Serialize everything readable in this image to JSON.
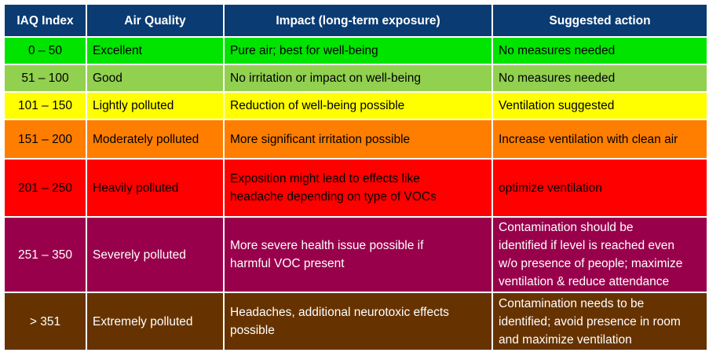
{
  "headers": [
    "IAQ Index",
    "Air Quality",
    "Impact (long-term exposure)",
    "Suggested action"
  ],
  "rows": [
    {
      "index": "0 – 50",
      "quality": "Excellent",
      "impact": "Pure air; best for well-being",
      "action": "No measures needed",
      "bg": "#00e400",
      "fg": "#000000"
    },
    {
      "index": "51 – 100",
      "quality": "Good",
      "impact": "No irritation or impact on well-being",
      "action": "No measures needed",
      "bg": "#92d050",
      "fg": "#000000"
    },
    {
      "index": "101 – 150",
      "quality": "Lightly polluted",
      "impact": "Reduction of well-being possible",
      "action": "Ventilation suggested",
      "bg": "#ffff00",
      "fg": "#000000"
    },
    {
      "index": "151 – 200",
      "quality": "Moderately polluted",
      "impact": "More significant irritation possible",
      "action": "Increase ventilation with clean air",
      "bg": "#ff7e00",
      "fg": "#000000"
    },
    {
      "index": "201 – 250",
      "quality": "Heavily polluted",
      "impact": "Exposition might lead to effects like\nheadache depending on type of VOCs",
      "action": "optimize ventilation",
      "bg": "#ff0000",
      "fg": "#000000"
    },
    {
      "index": "251 – 350",
      "quality": "Severely polluted",
      "impact": "More severe health issue possible if\nharmful VOC present",
      "action": "Contamination should be\nidentified if level is reached even\nw/o presence of people; maximize\nventilation & reduce attendance",
      "bg": "#99004c",
      "fg": "#ffffff"
    },
    {
      "index": "> 351",
      "quality": "Extremely polluted",
      "impact": "Headaches, additional neurotoxic effects\npossible",
      "action": "Contamination needs to be\nidentified; avoid presence in room\nand maximize ventilation",
      "bg": "#663300",
      "fg": "#ffffff"
    }
  ]
}
